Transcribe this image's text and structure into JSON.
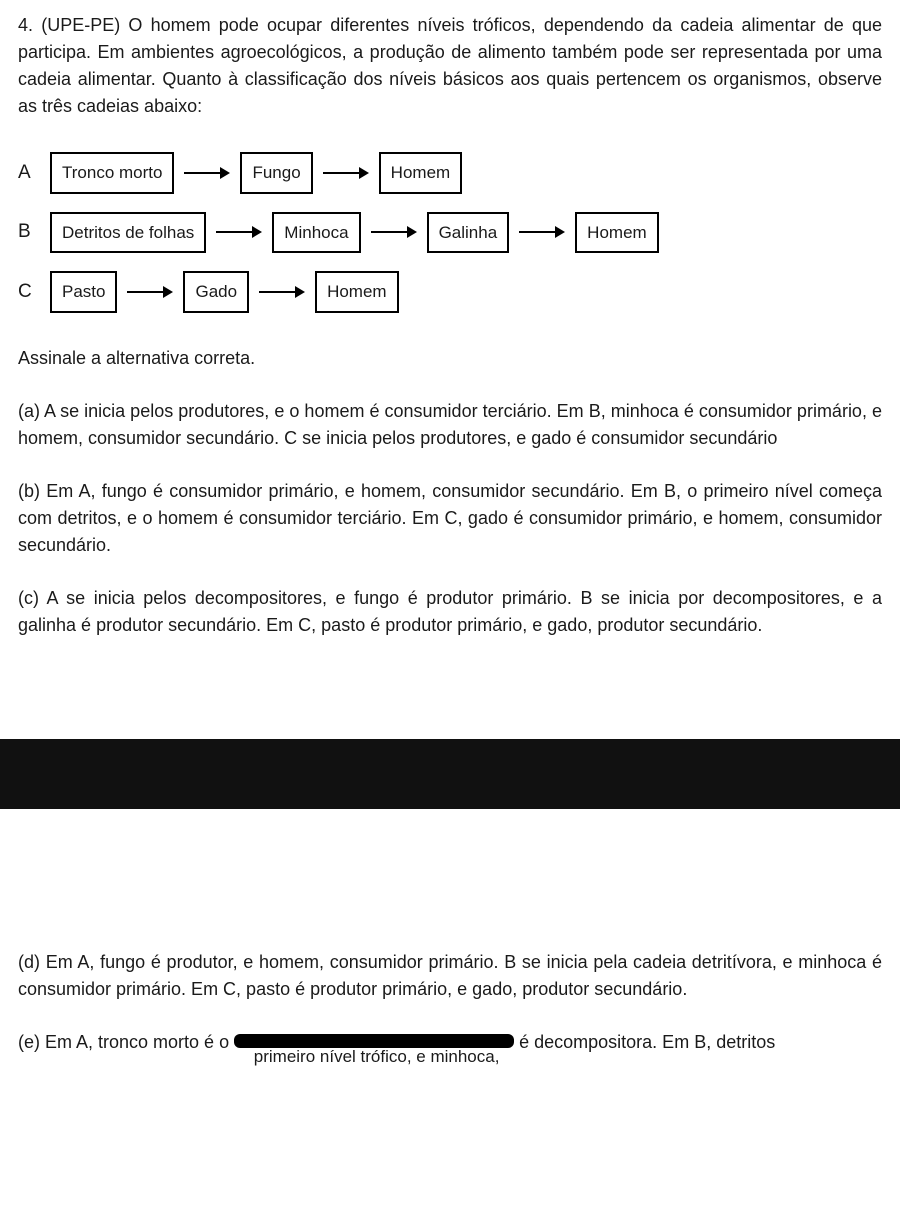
{
  "question": {
    "number": "4.",
    "source": "(UPE-PE)",
    "text": "O homem pode ocupar diferentes níveis tróficos, dependendo da cadeia alimentar de que participa. Em ambientes agroecológicos, a produção de alimento também pode ser representada por uma cadeia alimentar. Quanto à classificação dos níveis básicos aos quais pertencem os organismos, observe as três cadeias abaixo:"
  },
  "chains": [
    {
      "label": "A",
      "nodes": [
        "Tronco morto",
        "Fungo",
        "Homem"
      ]
    },
    {
      "label": "B",
      "nodes": [
        "Detritos de folhas",
        "Minhoca",
        "Galinha",
        "Homem"
      ]
    },
    {
      "label": "C",
      "nodes": [
        "Pasto",
        "Gado",
        "Homem"
      ]
    }
  ],
  "diagram_style": {
    "node_border_color": "#000000",
    "node_border_width": 2,
    "node_background": "#ffffff",
    "node_fontsize": 17,
    "arrow_color": "#000000",
    "arrow_length": 46,
    "arrow_stroke_width": 2
  },
  "instruction": "Assinale a alternativa correta.",
  "alternatives": {
    "a": "(a) A se inicia pelos produtores, e o homem é consumidor terciário. Em B, minhoca é consumidor primário, e homem, consumidor secundário. C se inicia pelos produtores, e gado é consumidor secundário",
    "b": "(b) Em A, fungo é consumidor primário, e homem, consumidor secundário. Em B, o primeiro nível começa com detritos, e o homem é consumidor terciário. Em C, gado é consumidor primário, e homem, consumidor secundário.",
    "c": "(c) A se inicia pelos decompositores, e fungo é produtor primário. B se inicia por decompositores, e a galinha é produtor secundário. Em C, pasto é produtor primário, e gado, produtor secundário.",
    "d": "(d) Em A, fungo é produtor, e homem, consumidor primário. B se inicia pela cadeia detritívora, e minhoca é consumidor primário. Em C, pasto é produtor primário, e gado, produtor secundário.",
    "e_prefix": "(e) Em A, tronco morto é o ",
    "e_suffix": " é decompositora. Em B, detritos",
    "e_hidden_visible": "primeiro nível trófico, e minhoca,"
  },
  "colors": {
    "text": "#1a1a1a",
    "background": "#ffffff",
    "bar": "#111111",
    "redaction": "#000000"
  }
}
